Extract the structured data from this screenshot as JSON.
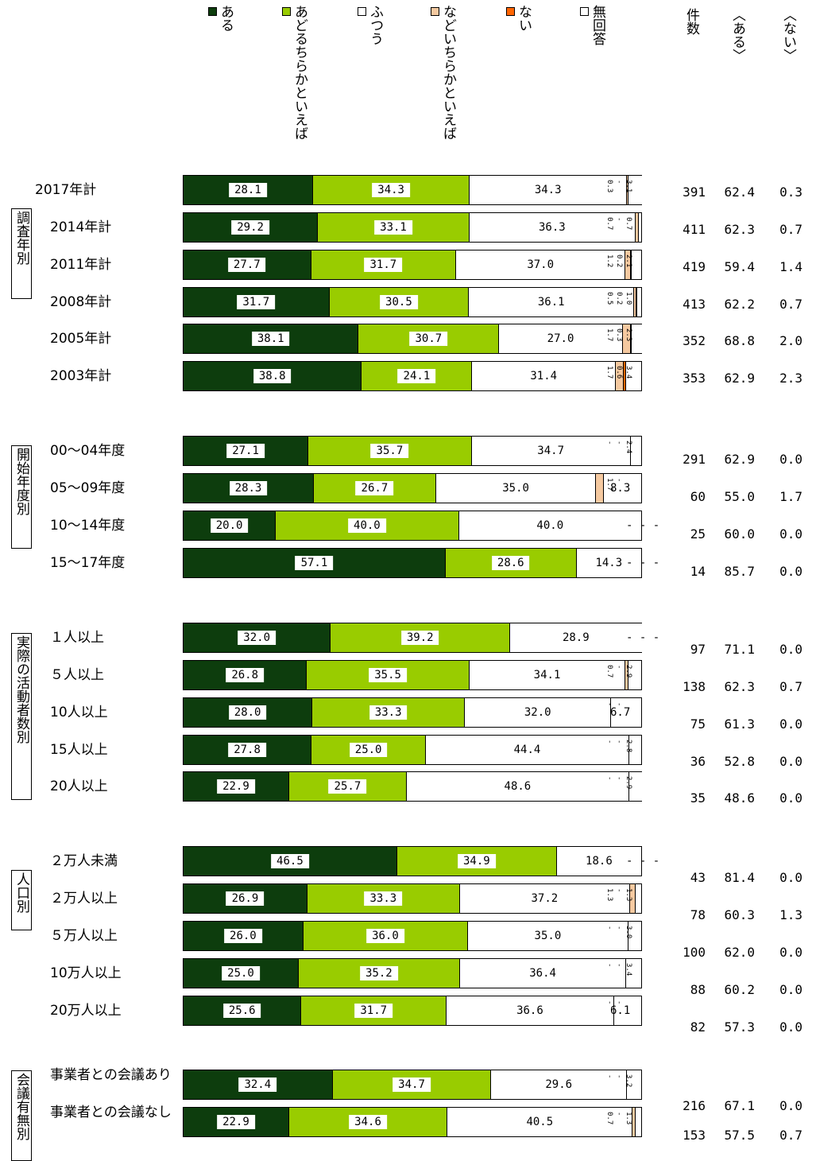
{
  "chart_data": {
    "type": "bar",
    "orientation": "horizontal",
    "stacked": true,
    "percent": true,
    "xlim": [
      0,
      100
    ],
    "series": [
      {
        "name": "ある",
        "color": "#0d3d0d"
      },
      {
        "name": "あどるちらかといえば",
        "color": "#99cc00"
      },
      {
        "name": "ふつう",
        "color": "#ffffff"
      },
      {
        "name": "などいちらかといえば",
        "color": "#f5c9a0"
      },
      {
        "name": "ない",
        "color": "#ff6600"
      },
      {
        "name": "無回答",
        "color": "#ffffff"
      }
    ],
    "columns": [
      "件数",
      "〈ある〉",
      "〈ない〉"
    ],
    "groups": [
      {
        "label": "調査年別",
        "rows": [
          {
            "label": "2017年計",
            "values": [
              28.1,
              34.3,
              34.3,
              0.3,
              0.0,
              3.1
            ],
            "count": "391",
            "aru": "62.4",
            "nai": "0.3"
          },
          {
            "label": "2014年計",
            "values": [
              29.2,
              33.1,
              36.3,
              0.7,
              0.0,
              0.7
            ],
            "count": "411",
            "aru": "62.3",
            "nai": "0.7"
          },
          {
            "label": "2011年計",
            "values": [
              27.7,
              31.7,
              37.0,
              1.2,
              0.2,
              2.1
            ],
            "count": "419",
            "aru": "59.4",
            "nai": "1.4"
          },
          {
            "label": "2008年計",
            "values": [
              31.7,
              30.5,
              36.1,
              0.5,
              0.2,
              1.0
            ],
            "count": "413",
            "aru": "62.2",
            "nai": "0.7"
          },
          {
            "label": "2005年計",
            "values": [
              38.1,
              30.7,
              27.0,
              1.7,
              0.3,
              2.3
            ],
            "count": "352",
            "aru": "68.8",
            "nai": "2.0"
          },
          {
            "label": "2003年計",
            "values": [
              38.8,
              24.1,
              31.4,
              1.7,
              0.6,
              3.4
            ],
            "count": "353",
            "aru": "62.9",
            "nai": "2.3"
          }
        ]
      },
      {
        "label": "開始年度別",
        "rows": [
          {
            "label": "00～04年度",
            "values": [
              27.1,
              35.7,
              34.7,
              0.0,
              0.0,
              2.4
            ],
            "count": "291",
            "aru": "62.9",
            "nai": "0.0"
          },
          {
            "label": "05～09年度",
            "values": [
              28.3,
              26.7,
              35.0,
              1.7,
              0.0,
              8.3
            ],
            "count": "60",
            "aru": "55.0",
            "nai": "1.7"
          },
          {
            "label": "10～14年度",
            "values": [
              20.0,
              40.0,
              40.0,
              0.0,
              0.0,
              0.0
            ],
            "count": "25",
            "aru": "60.0",
            "nai": "0.0"
          },
          {
            "label": "15～17年度",
            "values": [
              57.1,
              28.6,
              14.3,
              0.0,
              0.0,
              0.0
            ],
            "count": "14",
            "aru": "85.7",
            "nai": "0.0"
          }
        ]
      },
      {
        "label": "実際の活動者数別",
        "rows": [
          {
            "label": "１人以上",
            "values": [
              32.0,
              39.2,
              28.9,
              0.0,
              0.0,
              0.0
            ],
            "count": "97",
            "aru": "71.1",
            "nai": "0.0"
          },
          {
            "label": "５人以上",
            "values": [
              26.8,
              35.5,
              34.1,
              0.7,
              0.0,
              2.9
            ],
            "count": "138",
            "aru": "62.3",
            "nai": "0.7"
          },
          {
            "label": "10人以上",
            "values": [
              28.0,
              33.3,
              32.0,
              0.0,
              0.0,
              6.7
            ],
            "count": "75",
            "aru": "61.3",
            "nai": "0.0"
          },
          {
            "label": "15人以上",
            "values": [
              27.8,
              25.0,
              44.4,
              0.0,
              0.0,
              2.8
            ],
            "count": "36",
            "aru": "52.8",
            "nai": "0.0"
          },
          {
            "label": "20人以上",
            "values": [
              22.9,
              25.7,
              48.6,
              0.0,
              0.0,
              2.9
            ],
            "count": "35",
            "aru": "48.6",
            "nai": "0.0"
          }
        ]
      },
      {
        "label": "人口別",
        "rows": [
          {
            "label": "２万人未満",
            "values": [
              46.5,
              34.9,
              18.6,
              0.0,
              0.0,
              0.0
            ],
            "count": "43",
            "aru": "81.4",
            "nai": "0.0"
          },
          {
            "label": "２万人以上",
            "values": [
              26.9,
              33.3,
              37.2,
              1.3,
              0.0,
              1.3
            ],
            "count": "78",
            "aru": "60.3",
            "nai": "1.3"
          },
          {
            "label": "５万人以上",
            "values": [
              26.0,
              36.0,
              35.0,
              0.0,
              0.0,
              3.0
            ],
            "count": "100",
            "aru": "62.0",
            "nai": "0.0"
          },
          {
            "label": "10万人以上",
            "values": [
              25.0,
              35.2,
              36.4,
              0.0,
              0.0,
              3.4
            ],
            "count": "88",
            "aru": "60.2",
            "nai": "0.0"
          },
          {
            "label": "20万人以上",
            "values": [
              25.6,
              31.7,
              36.6,
              0.0,
              0.0,
              6.1
            ],
            "count": "82",
            "aru": "57.3",
            "nai": "0.0"
          }
        ]
      },
      {
        "label": "会議有無別",
        "rows": [
          {
            "label": "事業者との会議あり",
            "values": [
              32.4,
              34.7,
              29.6,
              0.0,
              0.0,
              3.2
            ],
            "count": "216",
            "aru": "67.1",
            "nai": "0.0"
          },
          {
            "label": "事業者との会議なし",
            "values": [
              22.9,
              34.6,
              40.5,
              0.7,
              0.0,
              1.3
            ],
            "count": "153",
            "aru": "57.5",
            "nai": "0.7"
          }
        ]
      }
    ]
  }
}
